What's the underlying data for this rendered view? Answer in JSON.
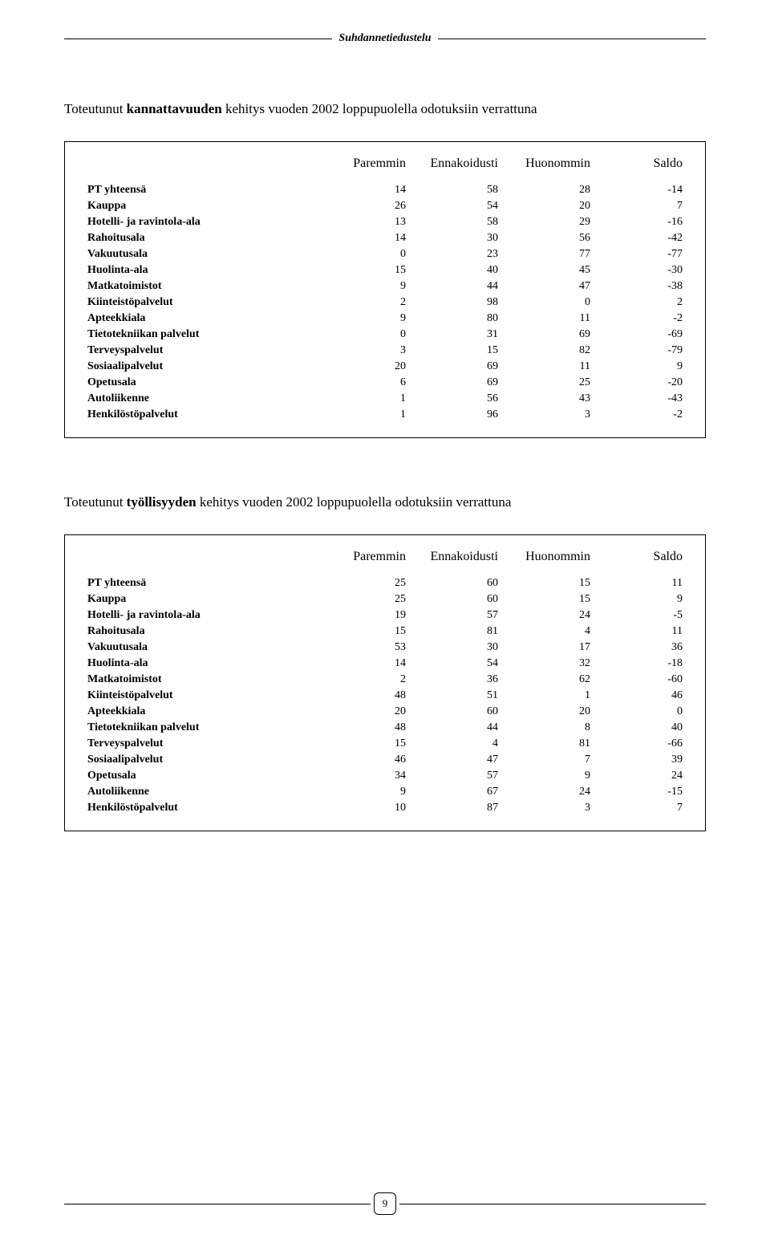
{
  "header": {
    "title": "Suhdannetiedustelu"
  },
  "section1": {
    "title_prefix": "Toteutunut ",
    "title_bold": "kannattavuuden",
    "title_suffix": " kehitys vuoden 2002 loppupuolella odotuksiin verrattuna"
  },
  "section2": {
    "title_prefix": "Toteutunut ",
    "title_bold": "työllisyyden",
    "title_suffix": " kehitys vuoden 2002 loppupuolella odotuksiin verrattuna"
  },
  "columns": [
    "Paremmin",
    "Ennakoidusti",
    "Huonommin",
    "Saldo"
  ],
  "table1": {
    "rows": [
      {
        "label": "PT yhteensä",
        "v": [
          14,
          58,
          28,
          -14
        ]
      },
      {
        "label": "Kauppa",
        "v": [
          26,
          54,
          20,
          7
        ]
      },
      {
        "label": "Hotelli- ja ravintola-ala",
        "v": [
          13,
          58,
          29,
          -16
        ]
      },
      {
        "label": "Rahoitusala",
        "v": [
          14,
          30,
          56,
          -42
        ]
      },
      {
        "label": "Vakuutusala",
        "v": [
          0,
          23,
          77,
          -77
        ]
      },
      {
        "label": "Huolinta-ala",
        "v": [
          15,
          40,
          45,
          -30
        ]
      },
      {
        "label": "Matkatoimistot",
        "v": [
          9,
          44,
          47,
          -38
        ]
      },
      {
        "label": "Kiinteistöpalvelut",
        "v": [
          2,
          98,
          0,
          2
        ]
      },
      {
        "label": "Apteekkiala",
        "v": [
          9,
          80,
          11,
          -2
        ]
      },
      {
        "label": "Tietotekniikan palvelut",
        "v": [
          0,
          31,
          69,
          -69
        ]
      },
      {
        "label": "Terveyspalvelut",
        "v": [
          3,
          15,
          82,
          -79
        ]
      },
      {
        "label": "Sosiaalipalvelut",
        "v": [
          20,
          69,
          11,
          9
        ]
      },
      {
        "label": "Opetusala",
        "v": [
          6,
          69,
          25,
          -20
        ]
      },
      {
        "label": "Autoliikenne",
        "v": [
          1,
          56,
          43,
          -43
        ]
      },
      {
        "label": "Henkilöstöpalvelut",
        "v": [
          1,
          96,
          3,
          -2
        ]
      }
    ]
  },
  "table2": {
    "rows": [
      {
        "label": "PT yhteensä",
        "v": [
          25,
          60,
          15,
          11
        ]
      },
      {
        "label": "Kauppa",
        "v": [
          25,
          60,
          15,
          9
        ]
      },
      {
        "label": "Hotelli- ja ravintola-ala",
        "v": [
          19,
          57,
          24,
          -5
        ]
      },
      {
        "label": "Rahoitusala",
        "v": [
          15,
          81,
          4,
          11
        ]
      },
      {
        "label": "Vakuutusala",
        "v": [
          53,
          30,
          17,
          36
        ]
      },
      {
        "label": "Huolinta-ala",
        "v": [
          14,
          54,
          32,
          -18
        ]
      },
      {
        "label": "Matkatoimistot",
        "v": [
          2,
          36,
          62,
          -60
        ]
      },
      {
        "label": "Kiinteistöpalvelut",
        "v": [
          48,
          51,
          1,
          46
        ]
      },
      {
        "label": "Apteekkiala",
        "v": [
          20,
          60,
          20,
          0
        ]
      },
      {
        "label": "Tietotekniikan palvelut",
        "v": [
          48,
          44,
          8,
          40
        ]
      },
      {
        "label": "Terveyspalvelut",
        "v": [
          15,
          4,
          81,
          -66
        ]
      },
      {
        "label": "Sosiaalipalvelut",
        "v": [
          46,
          47,
          7,
          39
        ]
      },
      {
        "label": "Opetusala",
        "v": [
          34,
          57,
          9,
          24
        ]
      },
      {
        "label": "Autoliikenne",
        "v": [
          9,
          67,
          24,
          -15
        ]
      },
      {
        "label": "Henkilöstöpalvelut",
        "v": [
          10,
          87,
          3,
          7
        ]
      }
    ]
  },
  "page_number": "9"
}
